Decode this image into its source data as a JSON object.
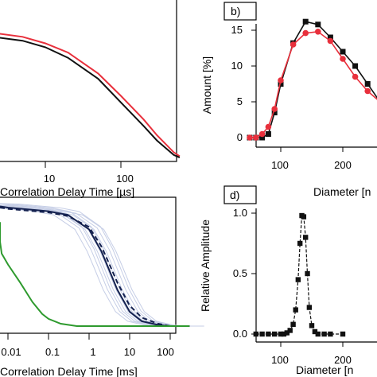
{
  "colors": {
    "black": "#111111",
    "red": "#e8303c",
    "green": "#2e9a2e",
    "navy": "#14214f",
    "light_blue": "#c6cee6"
  },
  "chart_data": [
    {
      "panel": "a",
      "type": "line",
      "xlabel": "Correlation Delay Time [µs]",
      "ylabel": "",
      "x_scale": "log",
      "tick_labels_x": [
        "10",
        "100"
      ],
      "series": [
        {
          "color": "#e8303c",
          "x": [
            1,
            2,
            5,
            10,
            20,
            50,
            100,
            200,
            300,
            500,
            600
          ],
          "y": [
            0.99,
            0.98,
            0.95,
            0.9,
            0.83,
            0.67,
            0.5,
            0.32,
            0.2,
            0.07,
            0.04
          ]
        },
        {
          "color": "#111111",
          "x": [
            1,
            2,
            5,
            10,
            20,
            50,
            100,
            200,
            300,
            500,
            600
          ],
          "y": [
            0.96,
            0.95,
            0.92,
            0.87,
            0.79,
            0.63,
            0.45,
            0.27,
            0.16,
            0.05,
            0.03
          ]
        }
      ]
    },
    {
      "panel": "b",
      "tag": "b)",
      "type": "line",
      "xlabel": "Diameter [n",
      "ylabel": "Amount [%]",
      "xlim": [
        45,
        300
      ],
      "ylim": [
        -1,
        17.5
      ],
      "tick_labels_x": [
        "100",
        "200"
      ],
      "tick_labels_y": [
        "0",
        "5",
        "10",
        "15"
      ],
      "series": [
        {
          "color": "#111111",
          "marker": "square",
          "x": [
            50,
            60,
            70,
            80,
            90,
            100,
            120,
            140,
            160,
            180,
            200,
            220,
            240,
            260,
            280
          ],
          "y": [
            0,
            0,
            0,
            0.5,
            3.5,
            7.5,
            13.2,
            16.2,
            15.8,
            14.0,
            12.0,
            10.0,
            7.5,
            5.0,
            4.0
          ]
        },
        {
          "color": "#e8303c",
          "marker": "circle",
          "x": [
            50,
            60,
            70,
            80,
            90,
            100,
            120,
            140,
            160,
            180,
            200,
            220,
            240,
            260,
            280
          ],
          "y": [
            0,
            0,
            0.5,
            1.5,
            4.0,
            8.0,
            13.0,
            14.6,
            14.8,
            13.5,
            11.0,
            8.5,
            6.5,
            5.0,
            4.2
          ]
        }
      ]
    },
    {
      "panel": "c",
      "type": "line",
      "xlabel": "Correlation Delay Time [ms]",
      "ylabel": "",
      "x_scale": "log",
      "tick_labels_x": [
        "0.01",
        "0.1",
        "1",
        "10",
        "100"
      ],
      "series": [
        {
          "color": "#14214f",
          "style": "solid",
          "x": [
            0.001,
            0.01,
            0.1,
            0.3,
            1,
            2,
            3,
            5,
            10,
            20,
            50,
            100,
            300
          ],
          "y": [
            0.99,
            0.98,
            0.95,
            0.92,
            0.8,
            0.62,
            0.48,
            0.3,
            0.12,
            0.04,
            0.01,
            0.0,
            0.0
          ]
        },
        {
          "color": "#14214f",
          "style": "dashed",
          "x": [
            0.001,
            0.01,
            0.1,
            0.3,
            1,
            2,
            3,
            5,
            10,
            20,
            50,
            100,
            300
          ],
          "y": [
            0.98,
            0.97,
            0.94,
            0.91,
            0.82,
            0.66,
            0.53,
            0.36,
            0.17,
            0.07,
            0.02,
            0.0,
            0.0
          ]
        },
        {
          "color": "#2e9a2e",
          "style": "solid",
          "x": [
            0.001,
            0.002,
            0.004,
            0.007,
            0.01,
            0.02,
            0.04,
            0.07,
            0.1,
            0.2,
            0.5,
            1,
            10,
            300
          ],
          "y": [
            0.86,
            0.8,
            0.7,
            0.6,
            0.51,
            0.36,
            0.2,
            0.1,
            0.06,
            0.02,
            0.0,
            0.0,
            0.0,
            0.0
          ]
        }
      ]
    },
    {
      "panel": "d",
      "tag": "d)",
      "type": "line",
      "xlabel": "Diameter [n",
      "ylabel": "Relative Amplitude",
      "xlim": [
        45,
        300
      ],
      "ylim": [
        -0.04,
        1.1
      ],
      "tick_labels_x": [
        "100",
        "200"
      ],
      "tick_labels_y": [
        "0.0",
        "0.5",
        "1.0"
      ],
      "series": [
        {
          "color": "#111111",
          "marker": "square",
          "x": [
            60,
            70,
            80,
            90,
            100,
            105,
            110,
            115,
            120,
            124,
            128,
            131,
            134,
            137,
            140,
            143,
            146,
            150,
            155,
            160,
            170,
            180,
            200
          ],
          "y": [
            0,
            0,
            0,
            0,
            0,
            0,
            0.01,
            0.03,
            0.08,
            0.2,
            0.45,
            0.75,
            0.98,
            0.97,
            0.8,
            0.5,
            0.22,
            0.07,
            0.02,
            0,
            0,
            0,
            0
          ]
        }
      ]
    }
  ]
}
